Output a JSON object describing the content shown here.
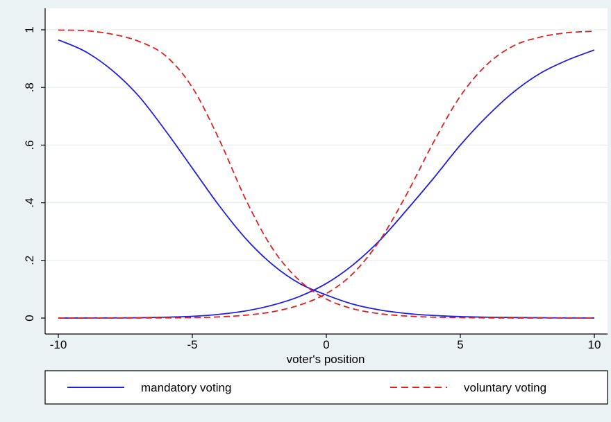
{
  "chart_data": {
    "type": "line",
    "title": "",
    "xlabel": "voter's position",
    "ylabel": "",
    "xlim": [
      -10,
      10
    ],
    "ylim": [
      0,
      1
    ],
    "x_ticks": [
      -10,
      -5,
      0,
      5,
      10
    ],
    "x_tick_labels": [
      "-10",
      "-5",
      "0",
      "5",
      "10"
    ],
    "y_ticks": [
      0,
      0.2,
      0.4,
      0.6,
      0.8,
      1
    ],
    "y_tick_labels": [
      "0",
      ".2",
      ".4",
      ".6",
      ".8",
      "1"
    ],
    "grid": true,
    "legend_position": "bottom",
    "x": [
      -10,
      -9,
      -8,
      -7,
      -6,
      -5,
      -4,
      -3,
      -2,
      -1,
      0,
      1,
      2,
      3,
      4,
      5,
      6,
      7,
      8,
      9,
      10
    ],
    "series": [
      {
        "name": "mandatory voting",
        "values": [
          0.0001,
          0.0002,
          0.0005,
          0.001,
          0.003,
          0.006,
          0.013,
          0.025,
          0.045,
          0.075,
          0.12,
          0.185,
          0.27,
          0.375,
          0.485,
          0.6,
          0.7,
          0.785,
          0.85,
          0.895,
          0.93
        ],
        "color": "#1e1ee6",
        "dash": "solid"
      },
      {
        "name": "mandatory voting",
        "values": [
          0.965,
          0.925,
          0.86,
          0.77,
          0.65,
          0.52,
          0.39,
          0.275,
          0.185,
          0.12,
          0.08,
          0.048,
          0.028,
          0.016,
          0.009,
          0.005,
          0.003,
          0.002,
          0.001,
          0.0005,
          0.0002
        ],
        "color": "#1e1ee6",
        "dash": "solid"
      },
      {
        "name": "voluntary voting",
        "values": [
          0,
          0,
          0,
          0.0002,
          0.0006,
          0.0015,
          0.004,
          0.01,
          0.022,
          0.045,
          0.085,
          0.155,
          0.27,
          0.43,
          0.61,
          0.77,
          0.88,
          0.945,
          0.975,
          0.99,
          0.995
        ],
        "color": "#e02020",
        "dash": "dashed"
      },
      {
        "name": "voluntary voting",
        "values": [
          0.999,
          0.997,
          0.985,
          0.96,
          0.91,
          0.8,
          0.62,
          0.41,
          0.24,
          0.13,
          0.066,
          0.032,
          0.015,
          0.007,
          0.003,
          0.0015,
          0.0006,
          0.0002,
          0,
          0,
          0
        ],
        "color": "#e02020",
        "dash": "dashed"
      }
    ]
  },
  "legend": {
    "items": [
      {
        "label": "mandatory voting",
        "color": "#1e1ee6",
        "dash": "solid"
      },
      {
        "label": "voluntary voting",
        "color": "#e02020",
        "dash": "dashed"
      }
    ]
  }
}
